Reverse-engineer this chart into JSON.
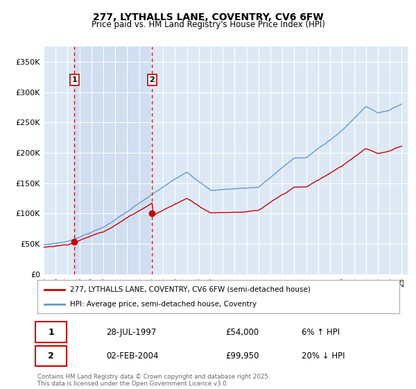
{
  "title": "277, LYTHALLS LANE, COVENTRY, CV6 6FW",
  "subtitle": "Price paid vs. HM Land Registry's House Price Index (HPI)",
  "legend_line1": "277, LYTHALLS LANE, COVENTRY, CV6 6FW (semi-detached house)",
  "legend_line2": "HPI: Average price, semi-detached house, Coventry",
  "annotation1_date": "28-JUL-1997",
  "annotation1_price": "£54,000",
  "annotation1_hpi": "6% ↑ HPI",
  "annotation2_date": "02-FEB-2004",
  "annotation2_price": "£99,950",
  "annotation2_hpi": "20% ↓ HPI",
  "footnote": "Contains HM Land Registry data © Crown copyright and database right 2025.\nThis data is licensed under the Open Government Licence v3.0.",
  "property_color": "#cc0000",
  "hpi_color": "#6699cc",
  "shade_color": "#dce9f5",
  "marker_color": "#cc0000",
  "dashed_line_color": "#cc0000",
  "plot_bg": "#dce9f5",
  "anno_box_color": "#cc0000",
  "ylim": [
    0,
    375000
  ],
  "yticks": [
    0,
    50000,
    100000,
    150000,
    200000,
    250000,
    300000,
    350000
  ],
  "ytick_labels": [
    "£0",
    "£50K",
    "£100K",
    "£150K",
    "£200K",
    "£250K",
    "£300K",
    "£350K"
  ],
  "year_start": 1995,
  "year_end": 2025,
  "sale1_year": 1997.58,
  "sale1_price": 54000,
  "sale2_year": 2004.09,
  "sale2_price": 99950
}
